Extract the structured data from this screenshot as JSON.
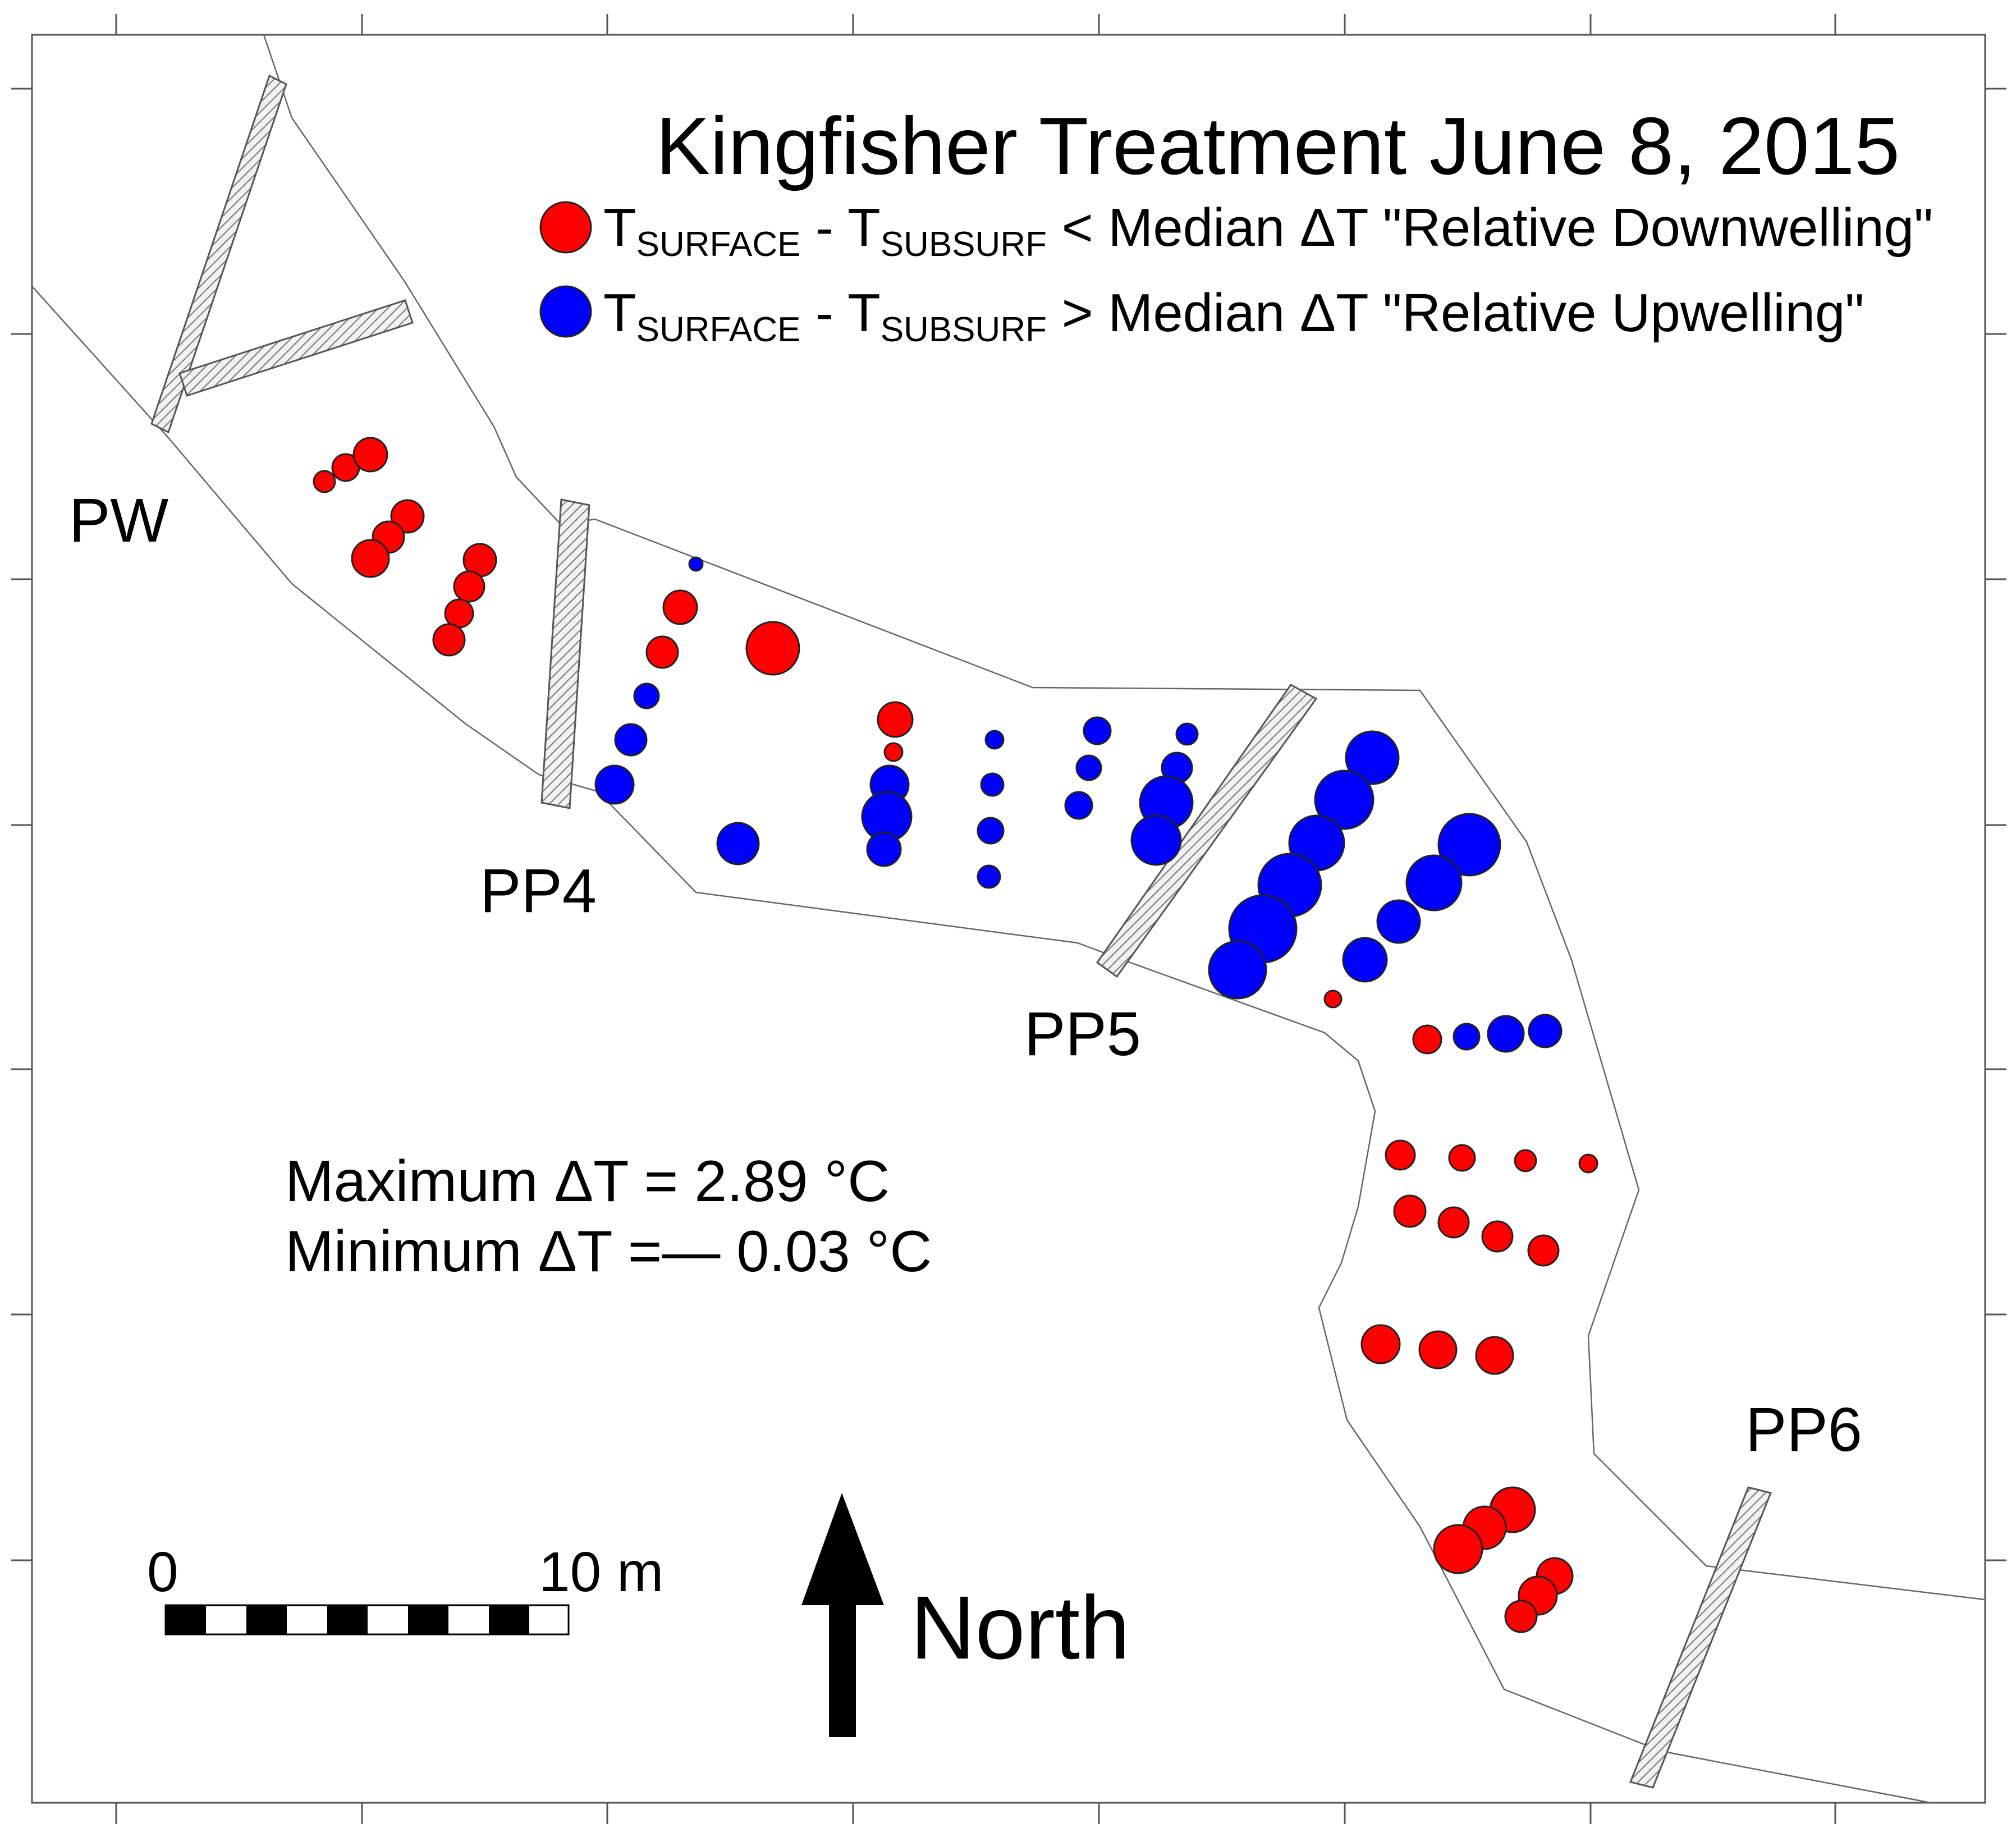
{
  "title": "Kingfisher Treatment June 8, 2015",
  "legend": {
    "items": [
      {
        "color": "#ff0000",
        "t1": "T",
        "sub1": "SURFACE",
        "dash": " - ",
        "t2": "T",
        "sub2": "SUBSURF",
        "rest": " < Median ΔT \"Relative Downwelling\""
      },
      {
        "color": "#0000ff",
        "t1": "T",
        "sub1": "SURFACE",
        "dash": " - ",
        "t2": "T",
        "sub2": "SUBSURF",
        "rest": " > Median ΔT \"Relative Upwelling\""
      }
    ]
  },
  "sites": [
    "PW",
    "PP4",
    "PP5",
    "PP6"
  ],
  "stats": {
    "max": "Maximum ΔT = 2.89 °C",
    "min": "Minimum ΔT =— 0.03 °C"
  },
  "scale_bar": {
    "start": "0",
    "end": "10 m"
  },
  "north": "North",
  "colors": {
    "downwelling": "#ff0000",
    "upwelling": "#0000ff"
  }
}
